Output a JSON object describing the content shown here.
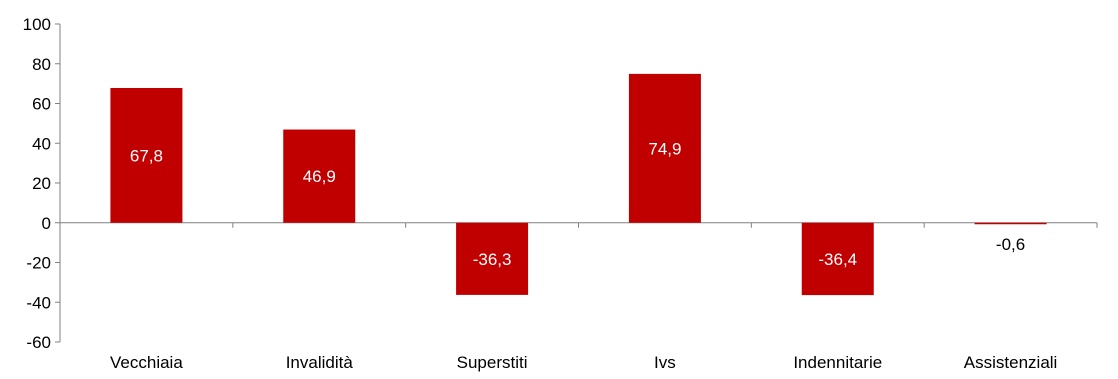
{
  "chart_data": {
    "type": "bar",
    "categories": [
      "Vecchiaia",
      "Invalidità",
      "Superstiti",
      "Ivs",
      "Indennitarie",
      "Assistenziali"
    ],
    "values": [
      67.8,
      46.9,
      -36.3,
      74.9,
      -36.4,
      -0.6
    ],
    "data_labels": [
      "67,8",
      "46,9",
      "-36,3",
      "74,9",
      "-36,4",
      "-0,6"
    ],
    "title": "",
    "xlabel": "",
    "ylabel": "",
    "ylim": [
      -60,
      100
    ],
    "yticks": [
      100,
      80,
      60,
      40,
      20,
      0,
      -20,
      -40,
      -60
    ],
    "ytick_labels": [
      "100",
      "80",
      "60",
      "40",
      "20",
      "0",
      "-20",
      "-40",
      "-60"
    ],
    "grid": false,
    "legend": "none",
    "bar_color": "#C00000",
    "axis_color": "#808080"
  }
}
